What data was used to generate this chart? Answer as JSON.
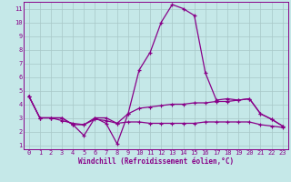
{
  "xlabel": "Windchill (Refroidissement éolien,°C)",
  "background_color": "#c5e8e8",
  "line_color": "#880088",
  "grid_color": "#a8c8c8",
  "xlim": [
    -0.5,
    23.5
  ],
  "ylim": [
    0.7,
    11.5
  ],
  "xticks": [
    0,
    1,
    2,
    3,
    4,
    5,
    6,
    7,
    8,
    9,
    10,
    11,
    12,
    13,
    14,
    15,
    16,
    17,
    18,
    19,
    20,
    21,
    22,
    23
  ],
  "yticks": [
    1,
    2,
    3,
    4,
    5,
    6,
    7,
    8,
    9,
    10,
    11
  ],
  "line1_x": [
    0,
    1,
    2,
    3,
    4,
    5,
    6,
    7,
    8,
    9,
    10,
    11,
    12,
    13,
    14,
    15,
    16,
    17,
    18,
    19,
    20,
    21,
    22,
    23
  ],
  "line1_y": [
    4.6,
    3.0,
    3.0,
    3.0,
    2.5,
    1.7,
    3.0,
    2.6,
    1.1,
    3.3,
    6.5,
    7.8,
    10.0,
    11.3,
    11.0,
    10.5,
    6.3,
    4.3,
    4.4,
    4.3,
    4.4,
    3.3,
    2.9,
    2.4
  ],
  "line2_x": [
    0,
    1,
    2,
    3,
    4,
    5,
    6,
    7,
    8,
    9,
    10,
    11,
    12,
    13,
    14,
    15,
    16,
    17,
    18,
    19,
    20,
    21,
    22,
    23
  ],
  "line2_y": [
    4.6,
    3.0,
    3.0,
    3.0,
    2.5,
    2.5,
    3.0,
    3.0,
    2.6,
    3.3,
    3.7,
    3.8,
    3.9,
    4.0,
    4.0,
    4.1,
    4.1,
    4.2,
    4.2,
    4.3,
    4.4,
    3.3,
    2.9,
    2.4
  ],
  "line3_x": [
    0,
    1,
    2,
    3,
    4,
    5,
    6,
    7,
    8,
    9,
    10,
    11,
    12,
    13,
    14,
    15,
    16,
    17,
    18,
    19,
    20,
    21,
    22,
    23
  ],
  "line3_y": [
    4.6,
    3.0,
    3.0,
    2.8,
    2.6,
    2.5,
    2.9,
    2.8,
    2.6,
    2.7,
    2.7,
    2.6,
    2.6,
    2.6,
    2.6,
    2.6,
    2.7,
    2.7,
    2.7,
    2.7,
    2.7,
    2.5,
    2.4,
    2.3
  ]
}
